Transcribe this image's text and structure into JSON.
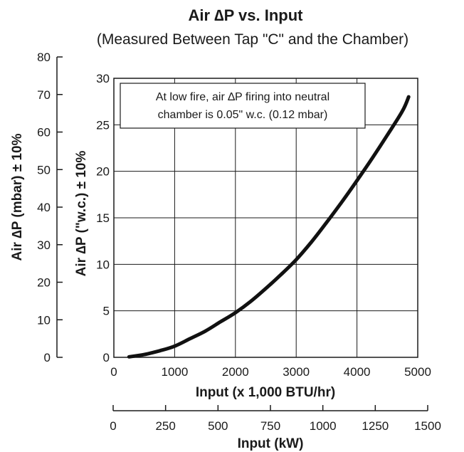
{
  "chart_data": {
    "type": "line",
    "title": "Air ∆P vs. Input",
    "subtitle": "(Measured Between Tap \"C\" and the Chamber)",
    "annotation": [
      "At low fire, air ∆P firing into neutral",
      "chamber is 0.05\" w.c. (0.12 mbar)"
    ],
    "xlabel": "Input (x 1,000 BTU/hr)",
    "xlim": [
      0,
      5000
    ],
    "xticks": [
      0,
      1000,
      2000,
      3000,
      4000,
      5000
    ],
    "ylabel": "Air ∆P (\"w.c.) ± 10%",
    "ylim": [
      0,
      30
    ],
    "yticks": [
      0,
      5,
      10,
      15,
      20,
      25,
      30
    ],
    "secondary_ylabel": "Air ∆P (mbar) ± 10%",
    "secondary_ylim": [
      0,
      80
    ],
    "secondary_yticks": [
      0,
      10,
      20,
      30,
      40,
      50,
      60,
      70,
      80
    ],
    "secondary_xlabel": "Input (kW)",
    "secondary_xlim": [
      0,
      1500
    ],
    "secondary_xticks": [
      0,
      250,
      500,
      750,
      1000,
      1250,
      1500
    ],
    "grid": true,
    "legend": "none",
    "series": [
      {
        "x": [
          250,
          500,
          750,
          1000,
          1250,
          1500,
          1750,
          2000,
          2250,
          2500,
          2750,
          3000,
          3250,
          3500,
          3750,
          4000,
          4250,
          4500,
          4750,
          4850
        ],
        "values": [
          0.05,
          0.3,
          0.7,
          1.2,
          2.0,
          2.8,
          3.8,
          4.8,
          6.0,
          7.4,
          8.9,
          10.5,
          12.4,
          14.5,
          16.7,
          19.0,
          21.4,
          23.9,
          26.5,
          28.0
        ],
        "color": "#111111"
      }
    ]
  }
}
